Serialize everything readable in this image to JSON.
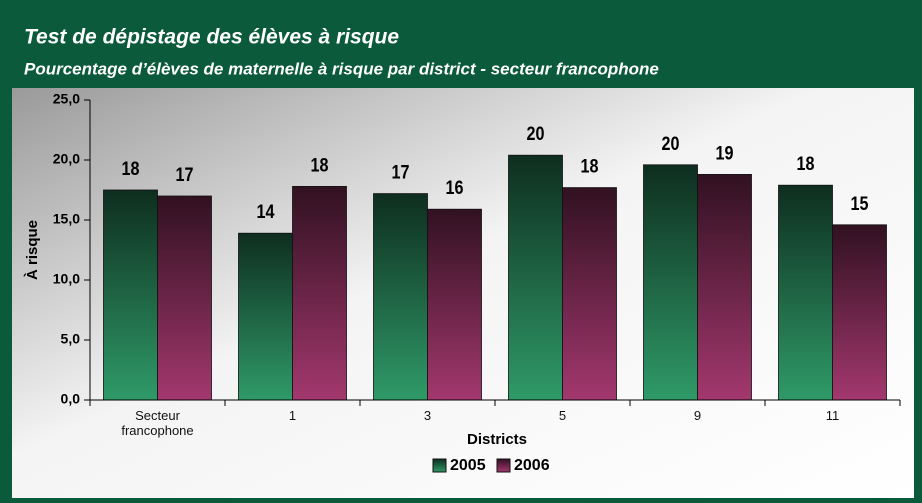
{
  "chart_data": {
    "type": "bar",
    "title": "Test de dépistage des élèves à risque",
    "subtitle": "Pourcentage d’élèves de maternelle à risque par district - secteur francophone",
    "x_label": "Districts",
    "y_label": "À risque",
    "categories": [
      "Secteur francophone",
      "1",
      "3",
      "5",
      "9",
      "11"
    ],
    "series": [
      {
        "name": "2005",
        "color": "#2f9a68",
        "values": [
          17.5,
          13.9,
          17.2,
          20.4,
          19.6,
          17.9
        ],
        "value_labels": [
          "18",
          "14",
          "17",
          "20",
          "20",
          "18"
        ]
      },
      {
        "name": "2006",
        "color": "#a3386e",
        "values": [
          17.0,
          17.8,
          15.9,
          17.7,
          18.8,
          14.6
        ],
        "value_labels": [
          "17",
          "18",
          "16",
          "18",
          "19",
          "15"
        ]
      }
    ],
    "ylim": [
      0,
      25
    ],
    "yticks": [
      {
        "value": 0,
        "label": "0,0"
      },
      {
        "value": 5,
        "label": "5,0"
      },
      {
        "value": 10,
        "label": "10,0"
      },
      {
        "value": 15,
        "label": "15,0"
      },
      {
        "value": 20,
        "label": "20,0"
      },
      {
        "value": 25,
        "label": "25,0"
      }
    ],
    "legend": "bottom"
  }
}
